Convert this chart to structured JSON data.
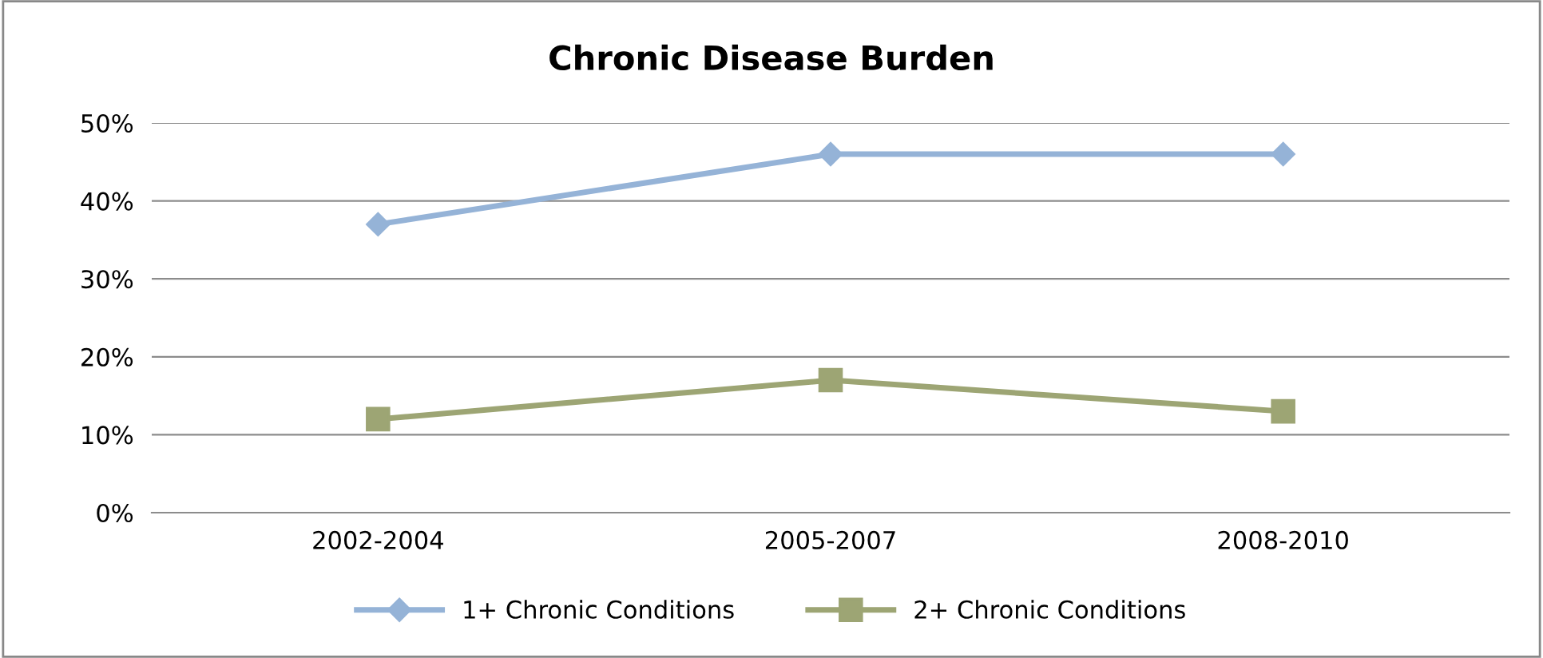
{
  "chart_data": {
    "type": "line",
    "title": "Chronic Disease Burden",
    "categories": [
      "2002-2004",
      "2005-2007",
      "2008-2010"
    ],
    "series": [
      {
        "name": "1+ Chronic Conditions",
        "color": "#95b3d7",
        "values": [
          37,
          46,
          46
        ],
        "marker": "diamond"
      },
      {
        "name": "2+ Chronic Conditions",
        "color": "#9da574",
        "values": [
          12,
          17,
          13
        ],
        "marker": "square"
      }
    ],
    "ylim": [
      0,
      50
    ],
    "yticks": [
      {
        "value": 0,
        "label": "0%"
      },
      {
        "value": 10,
        "label": "10%"
      },
      {
        "value": 20,
        "label": "20%"
      },
      {
        "value": 30,
        "label": "30%"
      },
      {
        "value": 40,
        "label": "40%"
      },
      {
        "value": 50,
        "label": "50%"
      }
    ],
    "grid": "y",
    "legend": "bottom",
    "line_style": "solid"
  }
}
